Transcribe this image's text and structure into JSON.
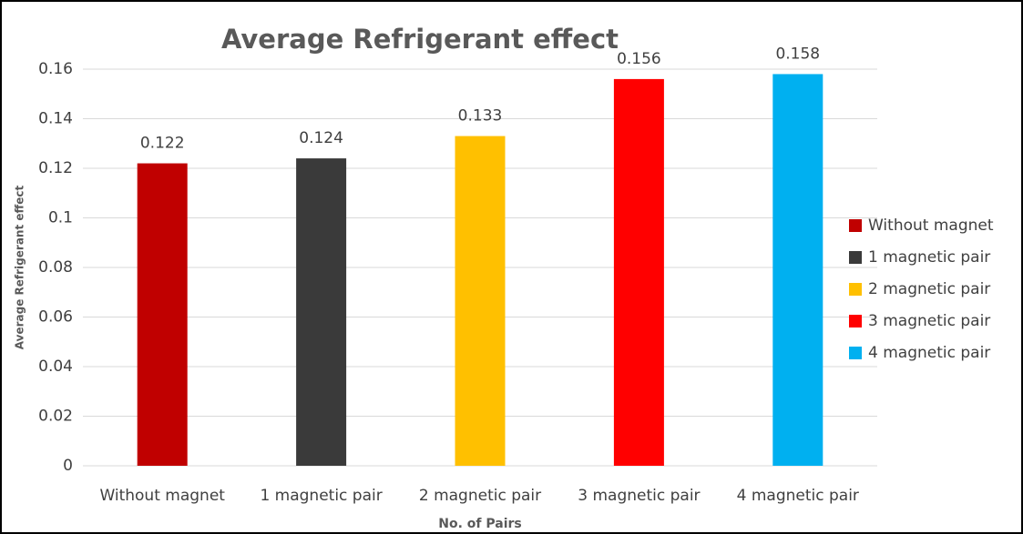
{
  "chart_data": {
    "type": "bar",
    "title": "Average Refrigerant effect",
    "x_label": "No. of Pairs",
    "y_label": "Average Refrigerant effect",
    "categories": [
      "Without magnet",
      "1 magnetic pair",
      "2 magnetic pair",
      "3 magnetic pair",
      "4 magnetic pair"
    ],
    "values": [
      0.122,
      0.124,
      0.133,
      0.156,
      0.158
    ],
    "colors": [
      "#c00000",
      "#3a3a3a",
      "#ffc000",
      "#ff0000",
      "#00b0f0"
    ],
    "ylim": [
      0,
      0.16
    ],
    "yticks": [
      0,
      0.02,
      0.04,
      0.06,
      0.08,
      0.1,
      0.12,
      0.14,
      0.16
    ],
    "grid": true,
    "legend": "right"
  }
}
